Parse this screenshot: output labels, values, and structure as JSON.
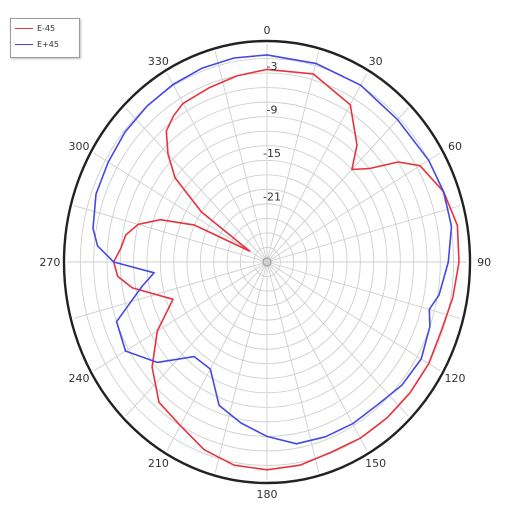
{
  "chart_data": {
    "type": "line",
    "subtype": "polar",
    "angular_ticks": [
      "0",
      "30",
      "60",
      "90",
      "120",
      "150",
      "180",
      "210",
      "240",
      "270",
      "300",
      "330"
    ],
    "radial_ticks": [
      -3,
      -9,
      -15,
      -21
    ],
    "radial_range": [
      -30,
      0
    ],
    "angle_direction": "clockwise",
    "zero_angle": "top",
    "grid": true,
    "legend_position": "top-left",
    "series": [
      {
        "name": "E-45",
        "color": "#e8333d",
        "theta": [
          0,
          15,
          30,
          40,
          45,
          50,
          55,
          60,
          70,
          80,
          90,
          100,
          110,
          120,
          130,
          140,
          150,
          160,
          170,
          180,
          190,
          200,
          210,
          220,
          230,
          240,
          250,
          260,
          265,
          270,
          275,
          280,
          285,
          290,
          295,
          300,
          305,
          310,
          315,
          320,
          325,
          330,
          340,
          350,
          360
        ],
        "r": [
          -3.5,
          -3.2,
          -5,
          -9,
          -12,
          -10,
          -6,
          -3.5,
          -1.8,
          -1,
          -1.2,
          -1.7,
          -2.2,
          -2,
          -2,
          -2,
          -2,
          -2.1,
          -1.6,
          -1.4,
          -1.6,
          -2.5,
          -4,
          -4.8,
          -7.5,
          -11,
          -15,
          -9.5,
          -7.5,
          -7,
          -8,
          -8.5,
          -10,
          -13,
          -18,
          -27,
          -18,
          -12,
          -9,
          -6.5,
          -5.5,
          -4.8,
          -4.5,
          -4,
          -3.5
        ]
      },
      {
        "name": "E+45",
        "color": "#4747e5",
        "theta": [
          0,
          15,
          30,
          45,
          60,
          70,
          80,
          90,
          100,
          105,
          110,
          120,
          130,
          140,
          150,
          160,
          170,
          180,
          190,
          200,
          210,
          220,
          230,
          240,
          250,
          260,
          265,
          270,
          275,
          280,
          290,
          300,
          310,
          320,
          330,
          340,
          350,
          360
        ],
        "r": [
          -1.5,
          -1.7,
          -1.9,
          -2.3,
          -2,
          -1.8,
          -1.9,
          -2.8,
          -3.8,
          -4.8,
          -4,
          -3.3,
          -3.6,
          -4.3,
          -4.3,
          -4.4,
          -4.6,
          -6,
          -7.5,
          -9,
          -13,
          -13,
          -8.5,
          -5.5,
          -6,
          -11,
          -13,
          -7,
          -4.5,
          -3.5,
          -2.7,
          -2.5,
          -2.2,
          -2,
          -1.8,
          -1.6,
          -1.5,
          -1.5
        ]
      }
    ]
  }
}
